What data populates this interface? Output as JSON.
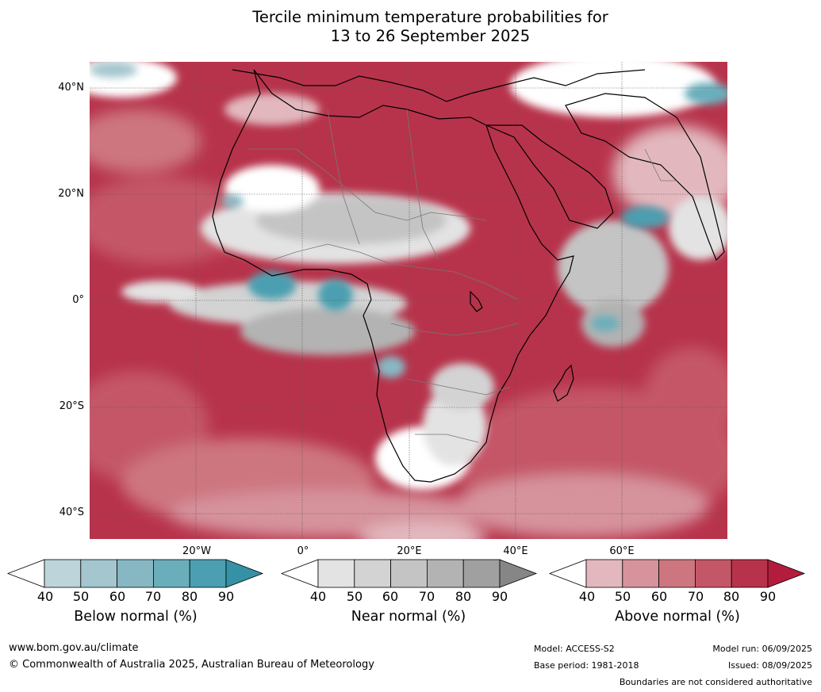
{
  "title": {
    "line1": "Tercile minimum temperature probabilities for",
    "line2": "13 to 26 September 2025"
  },
  "map": {
    "region": "Africa and surrounding oceans",
    "lat_labels": [
      "40°N",
      "20°N",
      "0°",
      "20°S",
      "40°S"
    ],
    "lon_labels": [
      "20°W",
      "0°",
      "20°E",
      "40°E",
      "60°E"
    ]
  },
  "legends": [
    {
      "caption": "Below normal (%)",
      "ticks": [
        "40",
        "50",
        "60",
        "70",
        "80",
        "90"
      ],
      "colors": [
        "#ffffff",
        "#bdd4db",
        "#a4c6ce",
        "#87b7c2",
        "#6aaebb",
        "#4b9fb0",
        "#3592a6"
      ]
    },
    {
      "caption": "Near normal (%)",
      "ticks": [
        "40",
        "50",
        "60",
        "70",
        "80",
        "90"
      ],
      "colors": [
        "#ffffff",
        "#e3e3e3",
        "#d3d3d3",
        "#c4c4c4",
        "#b3b3b3",
        "#a0a0a0",
        "#868686"
      ]
    },
    {
      "caption": "Above normal (%)",
      "ticks": [
        "40",
        "50",
        "60",
        "70",
        "80",
        "90"
      ],
      "colors": [
        "#ffffff",
        "#e2b8be",
        "#d6939c",
        "#cd7680",
        "#c45767",
        "#b7334b",
        "#b31c3d"
      ]
    }
  ],
  "footer": {
    "website": "www.bom.gov.au/climate",
    "copyright": "© Commonwealth of Australia 2025, Australian Bureau of Meteorology",
    "model": "Model: ACCESS-S2",
    "base_period": "Base period: 1981-2018",
    "model_run": "Model run: 06/09/2025",
    "issued": "Issued: 08/09/2025",
    "disclaimer": "Boundaries are not considered authoritative"
  }
}
